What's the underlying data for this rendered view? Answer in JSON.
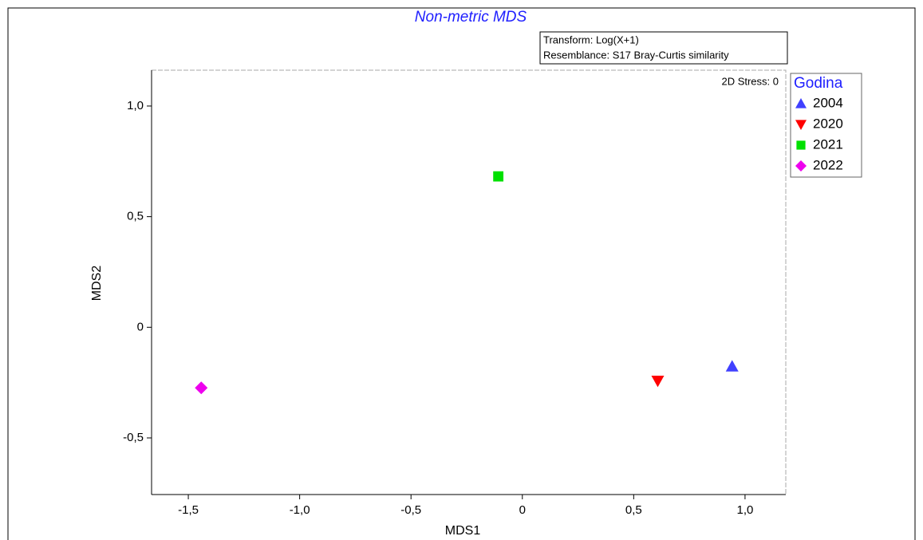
{
  "chart_data": {
    "type": "scatter",
    "title": "Non-metric MDS",
    "annotations": {
      "transform": "Transform: Log(X+1)",
      "resemblance": "Resemblance: S17 Bray-Curtis similarity",
      "stress": "2D Stress: 0"
    },
    "xlabel": "MDS1",
    "ylabel": "MDS2",
    "legend_title": "Godina",
    "legend": "right",
    "xlim": [
      -1.665,
      1.183
    ],
    "ylim": [
      -0.756,
      1.162
    ],
    "xticks": [
      {
        "value": -1.5,
        "label": "-1,5"
      },
      {
        "value": -1,
        "label": "-1,0"
      },
      {
        "value": -0.5,
        "label": "-0,5"
      },
      0,
      {
        "value": 0.5,
        "label": "0,5"
      },
      {
        "value": 1,
        "label": "1,0"
      }
    ],
    "yticks": [
      {
        "value": -0.5,
        "label": "-0,5"
      },
      0,
      {
        "value": 0.5,
        "label": "0,5"
      },
      {
        "value": 1,
        "label": "1,0"
      }
    ],
    "series": [
      {
        "name": "2004",
        "color": "#4040ff",
        "marker": "triangle-up",
        "x": [
          0.942
        ],
        "y": [
          -0.177
        ]
      },
      {
        "name": "2020",
        "color": "#ff0000",
        "marker": "triangle-down",
        "x": [
          0.608
        ],
        "y": [
          -0.242
        ]
      },
      {
        "name": "2021",
        "color": "#00e000",
        "marker": "square",
        "x": [
          -0.108
        ],
        "y": [
          0.682
        ]
      },
      {
        "name": "2022",
        "color": "#ee00ee",
        "marker": "diamond",
        "x": [
          -1.442
        ],
        "y": [
          -0.274
        ]
      }
    ]
  }
}
